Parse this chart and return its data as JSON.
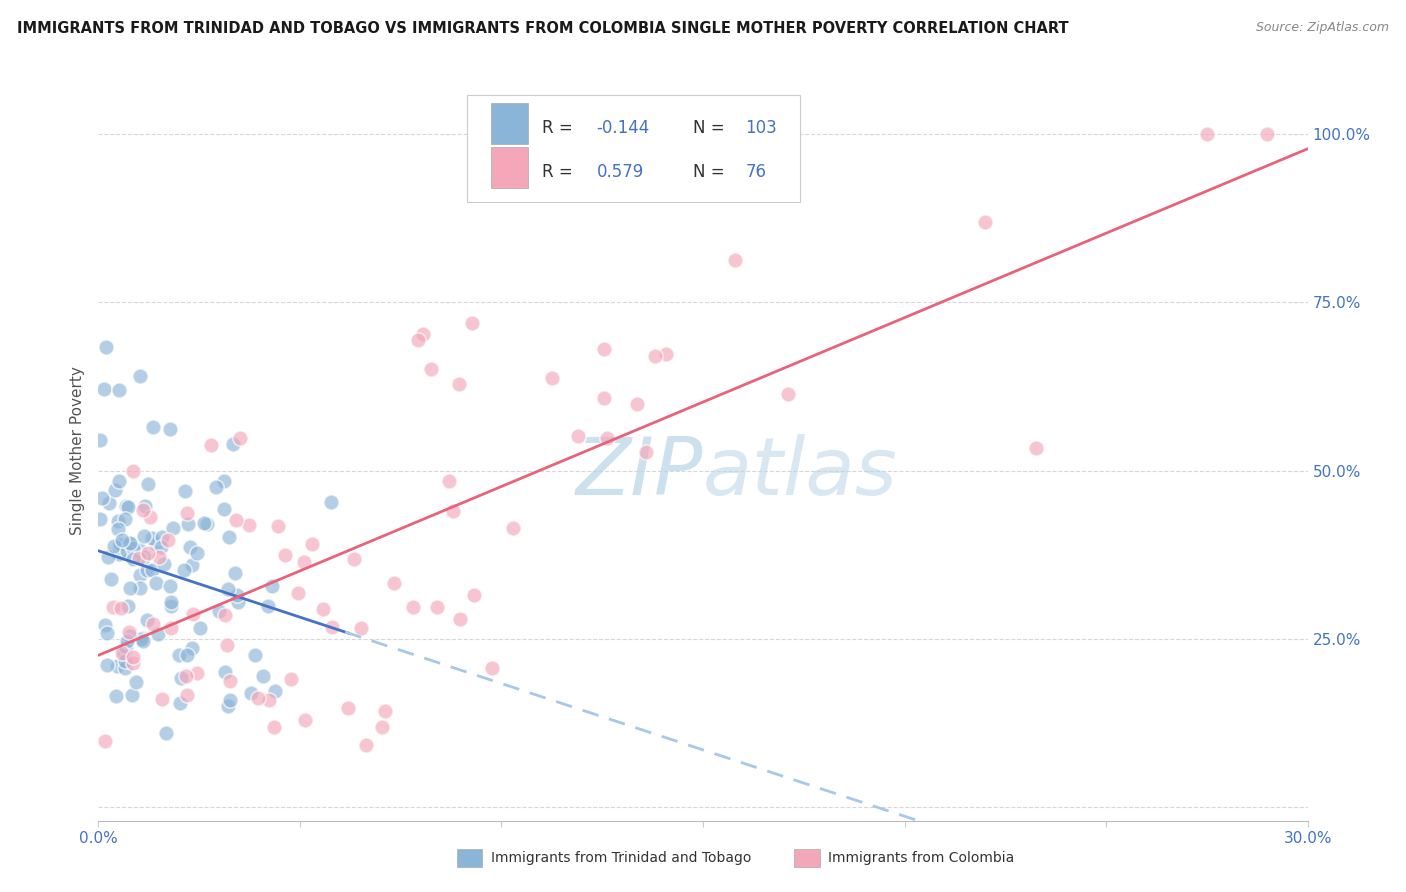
{
  "title": "IMMIGRANTS FROM TRINIDAD AND TOBAGO VS IMMIGRANTS FROM COLOMBIA SINGLE MOTHER POVERTY CORRELATION CHART",
  "source": "Source: ZipAtlas.com",
  "ylabel": "Single Mother Poverty",
  "legend_blue_label": "Immigrants from Trinidad and Tobago",
  "legend_pink_label": "Immigrants from Colombia",
  "R_blue": -0.144,
  "N_blue": 103,
  "R_pink": 0.579,
  "N_pink": 76,
  "blue_color": "#8ab4d8",
  "pink_color": "#f4a7b9",
  "blue_line_color": "#4472c4",
  "pink_line_color": "#e8637a",
  "blue_dashed_color": "#a8c8e8",
  "text_blue_color": "#4472c4",
  "watermark_color": "#b8d4e8",
  "background_color": "#ffffff",
  "grid_color": "#d8d8d8",
  "xlim": [
    0.0,
    0.3
  ],
  "ylim": [
    -0.02,
    1.08
  ],
  "y_tick_vals": [
    0.0,
    0.25,
    0.5,
    0.75,
    1.0
  ],
  "y_tick_labels_right": [
    "",
    "25.0%",
    "50.0%",
    "75.0%",
    "100.0%"
  ],
  "x_tick_vals": [
    0.0,
    0.05,
    0.1,
    0.15,
    0.2,
    0.25,
    0.3
  ],
  "x_tick_labels": [
    "0.0%",
    "",
    "",
    "",
    "",
    "",
    "30.0%"
  ]
}
